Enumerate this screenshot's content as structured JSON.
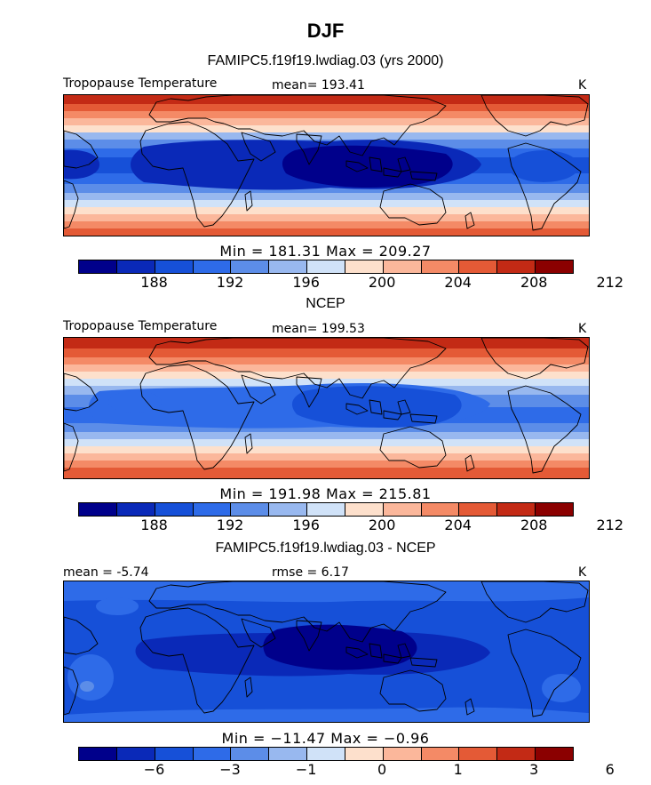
{
  "page": {
    "title": "DJF",
    "colors": [
      "#00008b",
      "#0a29b8",
      "#1650d8",
      "#2e6be8",
      "#5c8de8",
      "#98b8ef",
      "#d0e2f8",
      "#fde0cc",
      "#fbb79b",
      "#f48a66",
      "#e45a36",
      "#c32a15",
      "#8b0000"
    ]
  },
  "panels": [
    {
      "heading": "FAMIPC5.f19f19.lwdiag.03 (yrs 2000)",
      "left_label": "Tropopause Temperature",
      "center_label": "mean= 193.41",
      "units": "K",
      "minmax": "Min = 181.31 Max = 209.27",
      "colorbar_ticks": [
        "188",
        "192",
        "196",
        "200",
        "204",
        "208",
        "212"
      ]
    },
    {
      "heading": "NCEP",
      "left_label": "Tropopause Temperature",
      "center_label": "mean= 199.53",
      "units": "K",
      "minmax": "Min = 191.98 Max = 215.81",
      "colorbar_ticks": [
        "188",
        "192",
        "196",
        "200",
        "204",
        "208",
        "212"
      ]
    },
    {
      "heading": "FAMIPC5.f19f19.lwdiag.03 - NCEP",
      "left_label": "mean =  -5.74",
      "center_label": "rmse =   6.17",
      "units": "K",
      "minmax": "Min = −11.47 Max =  −0.96",
      "colorbar_ticks": [
        "−6",
        "−3",
        "−1",
        "0",
        "1",
        "3",
        "6"
      ]
    }
  ],
  "chart_data": [
    {
      "type": "heatmap",
      "title": "FAMIPC5.f19f19.lwdiag.03 (yrs 2000)",
      "variable": "Tropopause Temperature",
      "units": "K",
      "mean": 193.41,
      "min": 181.31,
      "max": 209.27,
      "contour_levels": [
        186,
        188,
        190,
        192,
        194,
        196,
        198,
        200,
        202,
        204,
        206,
        208,
        210,
        212,
        214
      ],
      "colorbar_tick_labels": [
        188,
        192,
        196,
        200,
        204,
        208,
        212
      ]
    },
    {
      "type": "heatmap",
      "title": "NCEP",
      "variable": "Tropopause Temperature",
      "units": "K",
      "mean": 199.53,
      "min": 191.98,
      "max": 215.81,
      "contour_levels": [
        186,
        188,
        190,
        192,
        194,
        196,
        198,
        200,
        202,
        204,
        206,
        208,
        210,
        212,
        214
      ],
      "colorbar_tick_labels": [
        188,
        192,
        196,
        200,
        204,
        208,
        212
      ]
    },
    {
      "type": "heatmap",
      "title": "FAMIPC5.f19f19.lwdiag.03 - NCEP",
      "units": "K",
      "mean": -5.74,
      "rmse": 6.17,
      "min": -11.47,
      "max": -0.96,
      "colorbar_tick_labels": [
        -6,
        -3,
        -1,
        0,
        1,
        3,
        6
      ]
    }
  ]
}
